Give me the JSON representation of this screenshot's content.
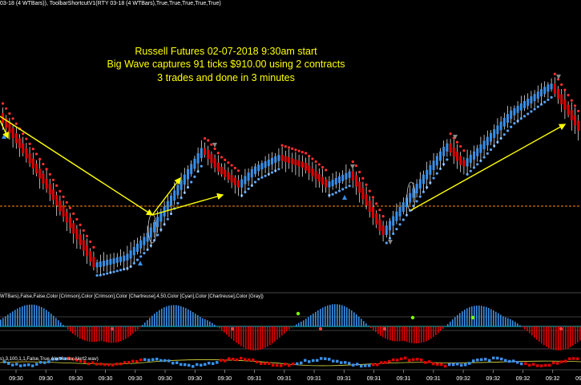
{
  "header": {
    "indicator_text": "03-18  (4  WTBars)),  ToolbarShortcutV1(RTY  03-18  (4  WTBars),True,True,True,True,True)"
  },
  "annotation": {
    "line1": "Russell Futures 02-07-2018  9:30am start",
    "line2": "Big Wave captures 91 ticks $910.00 using 2 contracts",
    "line3": "3 trades and done in 3 minutes",
    "color": "#ffff00"
  },
  "oscillator_panel": {
    "label": "WTBars),False,False,Color  [Crimson],Color  [Crimson],Color  [Chartreuse],4,50,Color  [Cyan],Color  [Chartreuse],Color  [Gray])"
  },
  "dots_panel": {
    "label": "s),3,100,1,1,False,True,Alert4.wav,Alert2.wav)"
  },
  "time_axis": {
    "labels": [
      "09:30",
      "09:30",
      "09:30",
      "09:30",
      "09:30",
      "09:30",
      "09:30",
      "09:30",
      "09:31",
      "09:31",
      "09:31",
      "09:31",
      "09:31",
      "09:31",
      "09:31",
      "09:32",
      "09:32",
      "09:32",
      "09:32",
      "09:32"
    ]
  },
  "colors": {
    "up_bar": "#3a8fe8",
    "down_bar": "#e00000",
    "wick": "#ffffff",
    "trail_up": "#5aa0f0",
    "trail_down": "#ff3030",
    "level_line": "#ff8c00",
    "arrow": "#ffff00",
    "osc_zero": "#00c8c8",
    "dot_green": "#7fff00"
  }
}
